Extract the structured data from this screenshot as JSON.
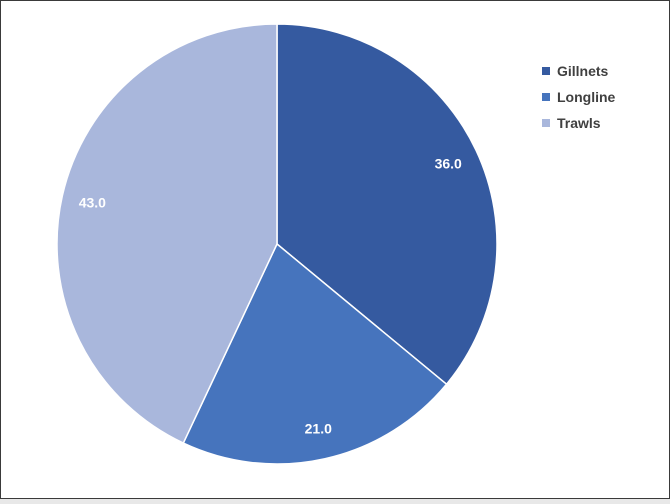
{
  "chart_data": {
    "type": "pie",
    "categories": [
      "Gillnets",
      "Longline",
      "Trawls"
    ],
    "values": [
      36.0,
      21.0,
      43.0
    ],
    "data_labels": [
      "36.0",
      "21.0",
      "43.0"
    ],
    "colors": [
      "#355aa0",
      "#4674bd",
      "#a9b7dc"
    ],
    "start_angle": "12 o'clock, clockwise",
    "legend_position": "top-right",
    "title": ""
  }
}
